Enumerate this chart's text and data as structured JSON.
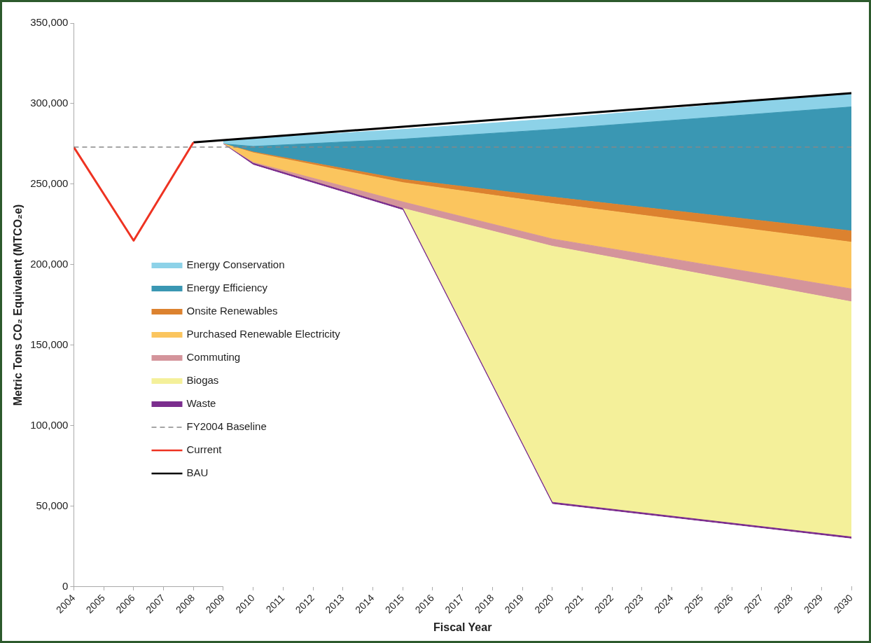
{
  "chart_data": {
    "type": "area",
    "stacked": true,
    "xlabel": "Fiscal Year",
    "ylabel": "Metric Tons CO₂ Equivalent (MTCO₂e)",
    "xlim": [
      2004,
      2030
    ],
    "xticks": [
      2004,
      2005,
      2006,
      2007,
      2008,
      2009,
      2010,
      2011,
      2012,
      2013,
      2014,
      2015,
      2016,
      2017,
      2018,
      2019,
      2020,
      2021,
      2022,
      2023,
      2024,
      2025,
      2026,
      2027,
      2028,
      2029,
      2030
    ],
    "ylim": [
      0,
      350000
    ],
    "yticks": [
      0,
      {
        "value": 50000,
        "label": "50,000"
      },
      {
        "value": 100000,
        "label": "100,000"
      },
      {
        "value": 150000,
        "label": "150,000"
      },
      {
        "value": 200000,
        "label": "200,000"
      },
      {
        "value": 250000,
        "label": "250,000"
      },
      {
        "value": 300000,
        "label": "300,000"
      },
      {
        "value": 350000,
        "label": "350,000"
      }
    ],
    "legend": "left",
    "x": [
      2009,
      2010,
      2015,
      2020,
      2030
    ],
    "series": [
      {
        "color": "#ffffff",
        "values": [
          275000,
          262000,
          234000,
          51500,
          30000
        ]
      },
      {
        "name": "Waste",
        "color": "#7b2d8e",
        "values": [
          0,
          1000,
          1000,
          1000,
          1000
        ]
      },
      {
        "name": "Biogas",
        "color": "#f4f09a",
        "values": [
          0,
          0,
          0,
          159000,
          146000
        ]
      },
      {
        "name": "Commuting",
        "color": "#d4949b",
        "values": [
          0,
          500,
          4000,
          4500,
          8000
        ]
      },
      {
        "name": "Purchased Renewable Electricity",
        "color": "#fbc55e",
        "values": [
          0,
          6000,
          12000,
          22000,
          29000
        ]
      },
      {
        "name": "Onsite Renewables",
        "color": "#dc822f",
        "values": [
          0,
          500,
          2000,
          4000,
          7000
        ]
      },
      {
        "name": "Energy Efficiency",
        "color": "#3a97b3",
        "values": [
          0,
          3500,
          25000,
          42000,
          77000
        ]
      },
      {
        "name": "Energy Conservation",
        "color": "#8dd2e8",
        "values": [
          2000,
          4900,
          6000,
          6600,
          8500
        ]
      },
      {
        "name": "Current",
        "type": "line",
        "color": "#ee3322",
        "x": [
          2004,
          2006,
          2008
        ],
        "values": [
          273000,
          215000,
          276000
        ]
      },
      {
        "name": "BAU",
        "type": "line",
        "color": "#000000",
        "x": [
          2008,
          2030
        ],
        "values": [
          276000,
          306500
        ]
      }
    ],
    "ref_lines": [
      {
        "axis": "y",
        "value": 273000,
        "label": "FY2004 Baseline",
        "color": "#888888",
        "line_style": "dashed"
      }
    ]
  }
}
